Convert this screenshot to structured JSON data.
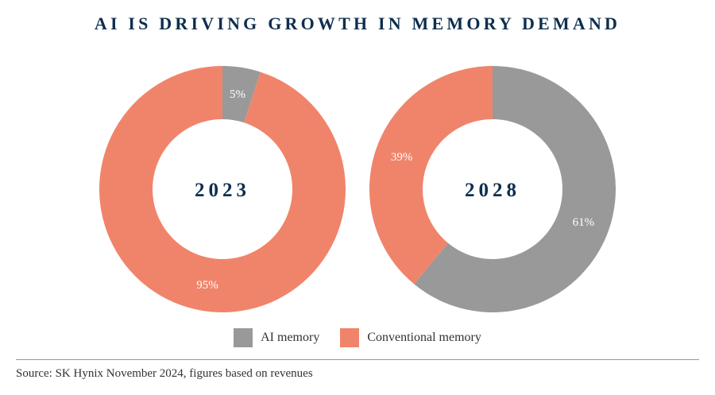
{
  "title": "AI IS DRIVING GROWTH IN MEMORY DEMAND",
  "source": "Source: SK Hynix November 2024, figures based on revenues",
  "chart_data": [
    {
      "type": "pie",
      "donut": true,
      "center_label": "2023",
      "categories": [
        "AI memory",
        "Conventional memory"
      ],
      "values": [
        5,
        95
      ],
      "labels": [
        "5%",
        "95%"
      ],
      "colors": [
        "#999999",
        "#f0846a"
      ]
    },
    {
      "type": "pie",
      "donut": true,
      "center_label": "2028",
      "categories": [
        "AI memory",
        "Conventional memory"
      ],
      "values": [
        61,
        39
      ],
      "labels": [
        "61%",
        "39%"
      ],
      "colors": [
        "#999999",
        "#f0846a"
      ]
    }
  ],
  "legend": [
    {
      "label": "AI memory",
      "color": "#999999"
    },
    {
      "label": "Conventional memory",
      "color": "#f0846a"
    }
  ]
}
